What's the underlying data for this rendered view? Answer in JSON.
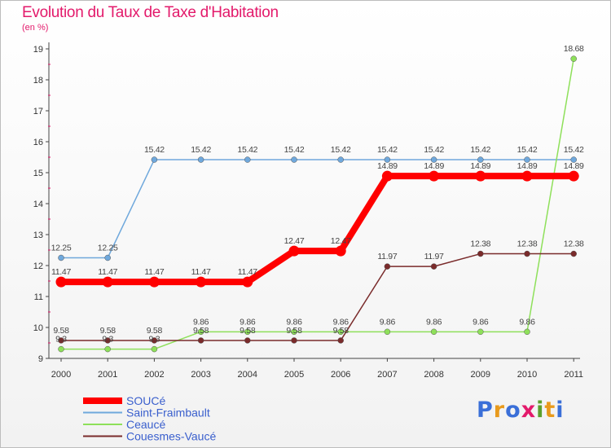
{
  "chart_data": {
    "type": "line",
    "title": "Evolution du Taux de Taxe d'Habitation",
    "subtitle": "(en %)",
    "x": [
      "2000",
      "2001",
      "2002",
      "2003",
      "2004",
      "2005",
      "2006",
      "2007",
      "2008",
      "2009",
      "2010",
      "2011"
    ],
    "ylim": [
      9,
      19
    ],
    "yticks": [
      9,
      10,
      11,
      12,
      13,
      14,
      15,
      16,
      17,
      18,
      19
    ],
    "grid": false,
    "series": [
      {
        "name": "SOUCé",
        "color": "#ff0000",
        "values": [
          11.47,
          11.47,
          11.47,
          11.47,
          11.47,
          12.47,
          12.47,
          14.89,
          14.89,
          14.89,
          14.89,
          14.89
        ],
        "labels": [
          "11.47",
          "11.47",
          "11.47",
          "11.47",
          "11.47",
          "12.47",
          "12.47",
          "14.89",
          "14.89",
          "14.89",
          "14.89",
          "14.89"
        ]
      },
      {
        "name": "Saint-Fraimbault",
        "color": "#6fa8dc",
        "values": [
          12.25,
          12.25,
          15.42,
          15.42,
          15.42,
          15.42,
          15.42,
          15.42,
          15.42,
          15.42,
          15.42,
          15.42
        ],
        "labels": [
          "12.25",
          "12.25",
          "15.42",
          "15.42",
          "15.42",
          "15.42",
          "15.42",
          "15.42",
          "15.42",
          "15.42",
          "15.42",
          "15.42"
        ]
      },
      {
        "name": "Ceaucé",
        "color": "#8ee05a",
        "values": [
          9.3,
          9.3,
          9.3,
          9.86,
          9.86,
          9.86,
          9.86,
          9.86,
          9.86,
          9.86,
          9.86,
          18.68
        ],
        "labels": [
          "9.3",
          "9.3",
          "9.3",
          "9.86",
          "9.86",
          "9.86",
          "9.86",
          "9.86",
          "9.86",
          "9.86",
          "9.86",
          "18.68"
        ]
      },
      {
        "name": "Couesmes-Vaucé",
        "color": "#7a2b2b",
        "values": [
          9.58,
          9.58,
          9.58,
          9.58,
          9.58,
          9.58,
          9.58,
          11.97,
          11.97,
          12.38,
          12.38,
          12.38
        ],
        "labels": [
          "9.58",
          "9.58",
          "9.58",
          "9.58",
          "9.58",
          "9.58",
          "9.58",
          "11.97",
          "11.97",
          "12.38",
          "12.38",
          "12.38"
        ]
      }
    ],
    "legend_position": "bottom-left"
  },
  "branding": {
    "logo_text": "Proxiti"
  }
}
